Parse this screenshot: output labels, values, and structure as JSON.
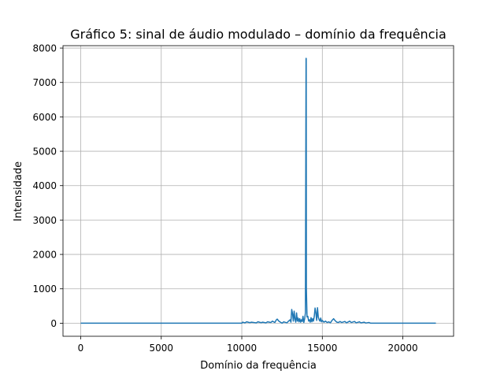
{
  "chart_data": {
    "type": "line",
    "title": "Gráfico 5: sinal de áudio modulado – domínio da frequência",
    "xlabel": "Domínio da frequência",
    "ylabel": "Intensidade",
    "xlim": [
      -1100,
      23150
    ],
    "ylim": [
      -380,
      8070
    ],
    "xticks": [
      0,
      5000,
      10000,
      15000,
      20000
    ],
    "yticks": [
      0,
      1000,
      2000,
      3000,
      4000,
      5000,
      6000,
      7000,
      8000
    ],
    "xtick_labels": [
      "0",
      "5000",
      "10000",
      "15000",
      "20000"
    ],
    "ytick_labels": [
      "0",
      "1000",
      "2000",
      "3000",
      "4000",
      "5000",
      "6000",
      "7000",
      "8000"
    ],
    "grid": true,
    "series": [
      {
        "color": "#1f77b4",
        "x": [
          0,
          10000,
          10050,
          10200,
          10300,
          10500,
          10600,
          10900,
          11000,
          11200,
          11300,
          11500,
          11600,
          11800,
          11900,
          12050,
          12150,
          12200,
          12250,
          12300,
          12400,
          12500,
          12600,
          12800,
          12900,
          13000,
          13050,
          13100,
          13150,
          13200,
          13250,
          13300,
          13350,
          13400,
          13450,
          13500,
          13550,
          13600,
          13650,
          13700,
          13750,
          13800,
          13850,
          13900,
          13950,
          13990,
          14000,
          14010,
          14050,
          14100,
          14150,
          14200,
          14250,
          14300,
          14350,
          14400,
          14450,
          14500,
          14550,
          14600,
          14650,
          14700,
          14750,
          14800,
          14850,
          14900,
          14950,
          15000,
          15100,
          15200,
          15300,
          15400,
          15500,
          15600,
          15700,
          15800,
          15900,
          16000,
          16100,
          16200,
          16400,
          16500,
          16700,
          16800,
          17000,
          17100,
          17300,
          17400,
          17600,
          17700,
          17900,
          18000,
          22050
        ],
        "y": [
          0,
          0,
          30,
          10,
          40,
          15,
          30,
          10,
          40,
          15,
          30,
          10,
          40,
          20,
          60,
          20,
          100,
          120,
          90,
          60,
          30,
          0,
          40,
          10,
          60,
          100,
          30,
          400,
          280,
          60,
          350,
          120,
          30,
          300,
          60,
          150,
          40,
          130,
          30,
          100,
          50,
          200,
          20,
          120,
          300,
          7700,
          7700,
          1000,
          180,
          200,
          60,
          100,
          30,
          160,
          40,
          130,
          60,
          200,
          440,
          300,
          80,
          450,
          180,
          100,
          60,
          150,
          40,
          80,
          30,
          60,
          20,
          40,
          10,
          80,
          130,
          70,
          30,
          20,
          50,
          20,
          50,
          10,
          60,
          20,
          50,
          10,
          40,
          10,
          30,
          5,
          20,
          0,
          0
        ]
      }
    ]
  }
}
